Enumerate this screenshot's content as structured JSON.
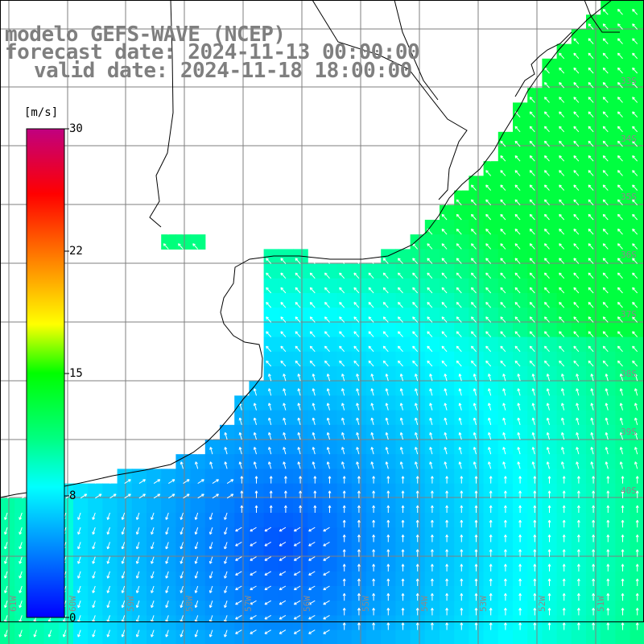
{
  "title": {
    "line1": "modelo GEFS-WAVE (NCEP)",
    "line2": "forecast date: 2024-11-13 00:00:00",
    "line3": "valid date: 2024-11-18 18:00:00"
  },
  "colorbar": {
    "unit": "[m/s]",
    "ticks": [
      "30",
      "22",
      "15",
      "8",
      "0"
    ],
    "colors": [
      "#0000ff",
      "#0080ff",
      "#00ffff",
      "#00ff80",
      "#00ff00",
      "#80ff00",
      "#ffff00",
      "#ff8000",
      "#ff0000",
      "#c00080"
    ]
  },
  "lat_labels": [
    "33S",
    "34S",
    "35S",
    "36S",
    "37S",
    "38S",
    "39S",
    "40S"
  ],
  "lon_labels": [
    "61W",
    "60W",
    "59W",
    "58W",
    "57W",
    "56W",
    "55W",
    "54W",
    "53W",
    "52W",
    "51W"
  ],
  "colors": {
    "land": "#ffffff",
    "coast": "#000000",
    "grid": "#7f7f7f",
    "arrow": "#ffffff",
    "text": "#7f7f7f"
  }
}
